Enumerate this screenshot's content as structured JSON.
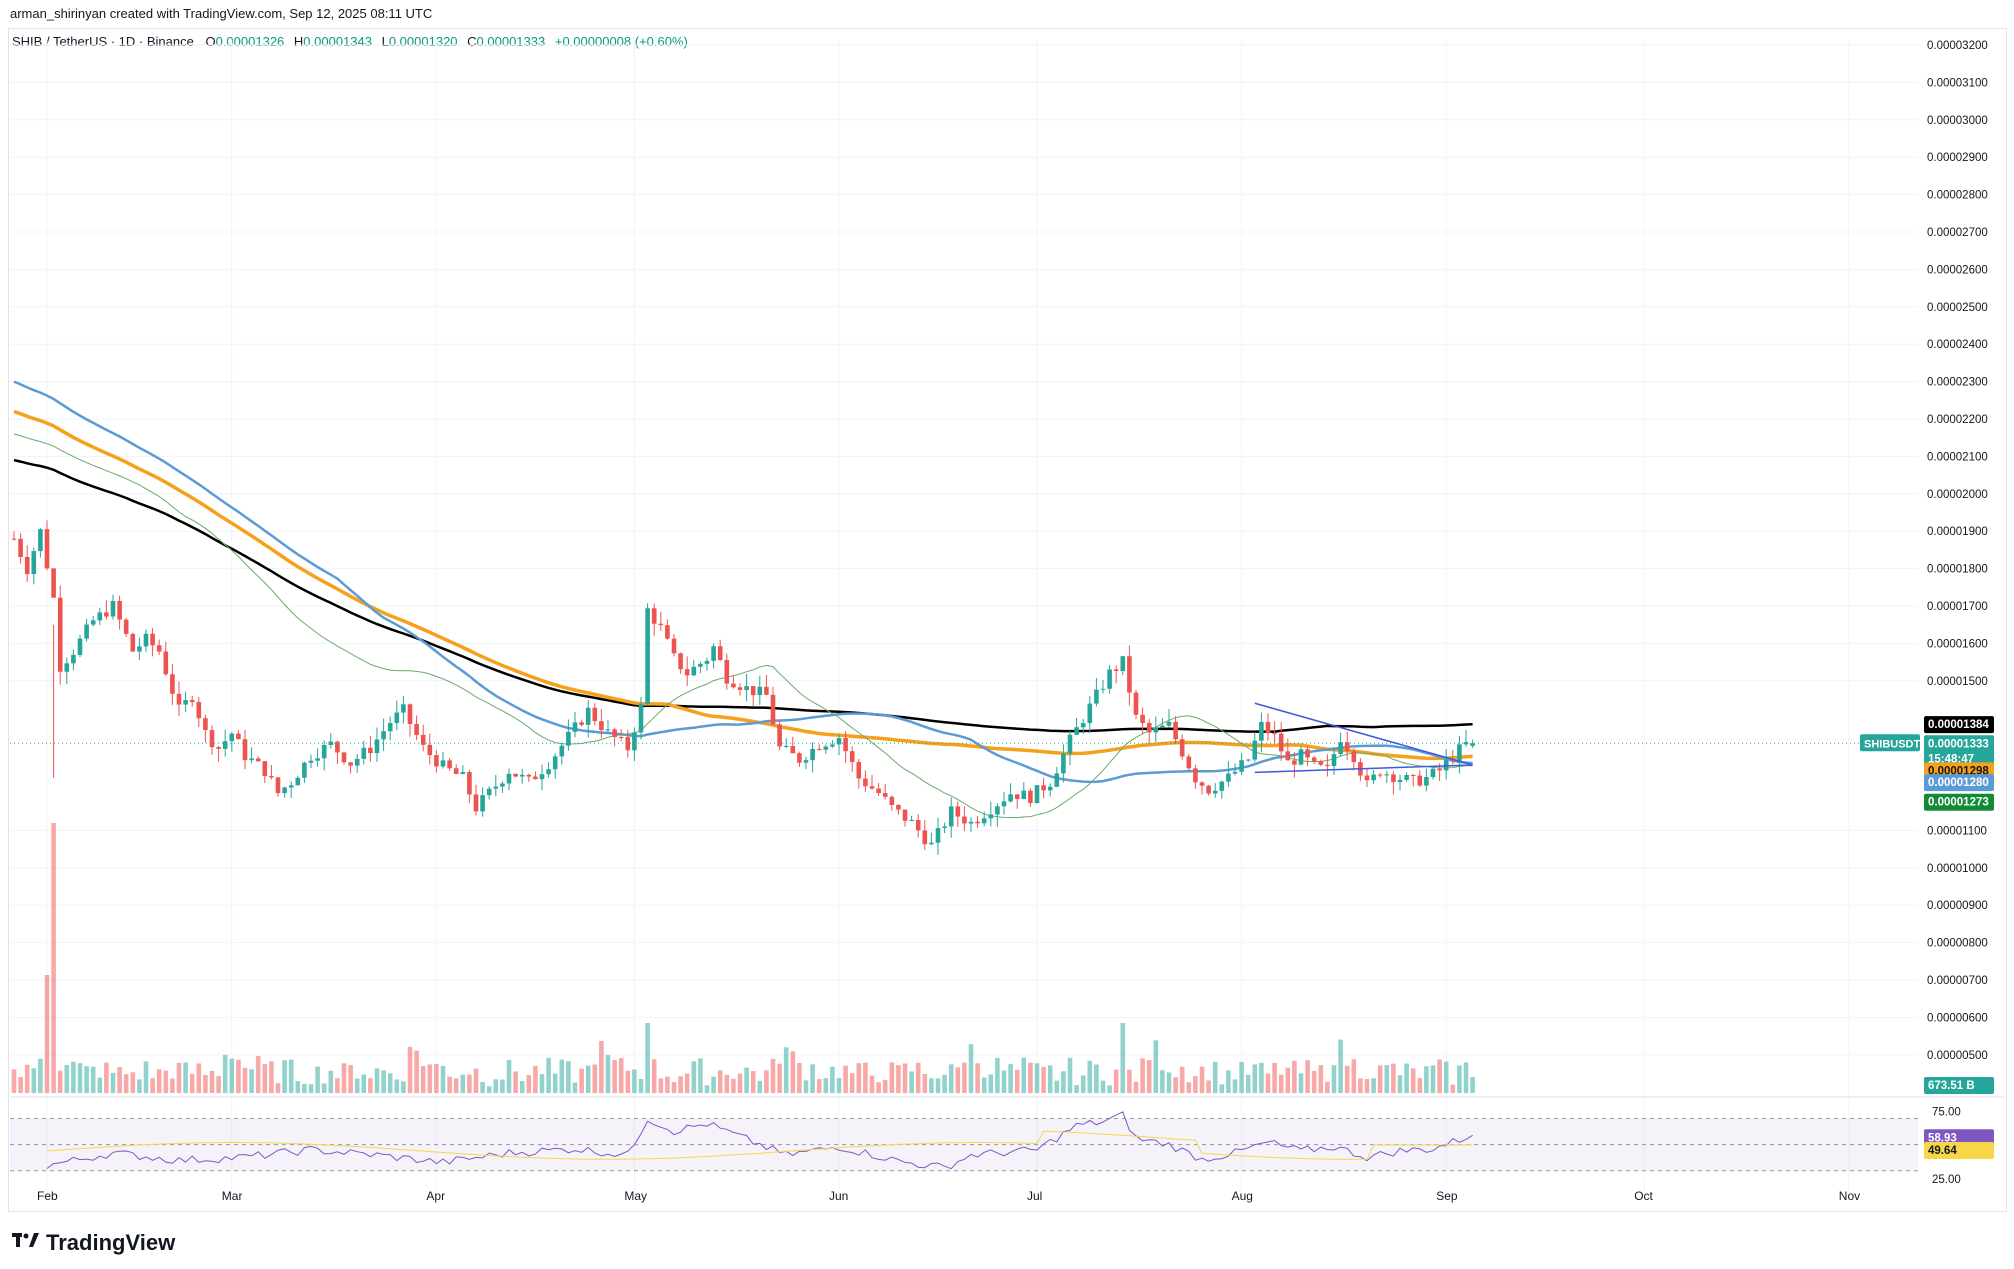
{
  "header": {
    "attribution": "arman_shirinyan created with TradingView.com, Sep 12, 2025 08:11 UTC"
  },
  "legend": {
    "symbol": "SHIB / TetherUS · 1D · Binance",
    "o_key": "O",
    "o_val": "0.00001326",
    "h_key": "H",
    "h_val": "0.00001343",
    "l_key": "L",
    "l_val": "0.00001320",
    "c_key": "C",
    "c_val": "0.00001333",
    "change": "+0.00000008 (+0.60%)"
  },
  "colors": {
    "up": "#26a69a",
    "down": "#ef5350",
    "ma_black": "#000000",
    "ma_orange": "#f5a11b",
    "ma_blue": "#5b9bd5",
    "ma_green": "#6aaa6a",
    "trendline": "#3d5adb",
    "rsi": "#7e57c2",
    "rsi_ma": "#f7d64a"
  },
  "badges": {
    "ma_black": "0.00001384",
    "symbol_name": "SHIBUSDT",
    "price": "0.00001333",
    "countdown": "15:48:47",
    "ma_orange": "0.00001298",
    "ma_blue": "0.00001280",
    "ma_green": "0.00001273",
    "volume": "673.51 B",
    "rsi": "58.93",
    "rsi_ma": "49.64",
    "rsi_upper": "75.00",
    "rsi_lower": "25.00"
  },
  "chart_data": {
    "type": "candlestick",
    "title": "SHIB / TetherUS · 1D · Binance",
    "y_axis": {
      "min": 4.5e-06,
      "max": 3.25e-05,
      "ticks": [
        "0.00003200",
        "0.00003100",
        "0.00003000",
        "0.00002900",
        "0.00002800",
        "0.00002700",
        "0.00002600",
        "0.00002500",
        "0.00002400",
        "0.00002300",
        "0.00002200",
        "0.00002100",
        "0.00002000",
        "0.00001900",
        "0.00001800",
        "0.00001700",
        "0.00001600",
        "0.00001500",
        "0.00001100",
        "0.00001000",
        "0.00000900",
        "0.00000800",
        "0.00000700",
        "0.00000600",
        "0.00000500"
      ]
    },
    "x_axis": {
      "labels": [
        "Feb",
        "Mar",
        "Apr",
        "May",
        "Jun",
        "Jul",
        "Aug",
        "Sep",
        "Oct",
        "Nov"
      ],
      "label_day_index": [
        0,
        28,
        59,
        89,
        120,
        150,
        181,
        212,
        242,
        273
      ]
    },
    "price_path": [
      [
        -5,
        18.8
      ],
      [
        -3,
        18.0
      ],
      [
        -1,
        19.0
      ],
      [
        1,
        17.2
      ],
      [
        2,
        15.4
      ],
      [
        4,
        15.8
      ],
      [
        7,
        16.6
      ],
      [
        10,
        17.0
      ],
      [
        13,
        15.8
      ],
      [
        15,
        16.1
      ],
      [
        17,
        15.8
      ],
      [
        20,
        14.2
      ],
      [
        22,
        14.6
      ],
      [
        24,
        13.6
      ],
      [
        26,
        13.2
      ],
      [
        28,
        13.6
      ],
      [
        30,
        13.0
      ],
      [
        33,
        12.6
      ],
      [
        35,
        12.0
      ],
      [
        37,
        12.3
      ],
      [
        40,
        13.0
      ],
      [
        43,
        13.3
      ],
      [
        46,
        12.8
      ],
      [
        49,
        13.2
      ],
      [
        52,
        13.9
      ],
      [
        54,
        14.2
      ],
      [
        57,
        13.2
      ],
      [
        60,
        12.7
      ],
      [
        63,
        12.4
      ],
      [
        65,
        11.6
      ],
      [
        67,
        12.0
      ],
      [
        70,
        12.6
      ],
      [
        73,
        12.3
      ],
      [
        76,
        12.8
      ],
      [
        79,
        13.5
      ],
      [
        82,
        14.2
      ],
      [
        85,
        13.6
      ],
      [
        88,
        13.2
      ],
      [
        90,
        14.3
      ],
      [
        91,
        16.9
      ],
      [
        93,
        16.4
      ],
      [
        95,
        15.6
      ],
      [
        97,
        15.2
      ],
      [
        100,
        15.6
      ],
      [
        101,
        15.9
      ],
      [
        103,
        15.1
      ],
      [
        106,
        14.8
      ],
      [
        109,
        14.6
      ],
      [
        111,
        13.2
      ],
      [
        114,
        12.9
      ],
      [
        117,
        13.3
      ],
      [
        120,
        13.5
      ],
      [
        123,
        12.4
      ],
      [
        126,
        12.0
      ],
      [
        128,
        11.6
      ],
      [
        131,
        11.2
      ],
      [
        134,
        10.6
      ],
      [
        137,
        11.5
      ],
      [
        140,
        11.2
      ],
      [
        143,
        11.6
      ],
      [
        146,
        12.0
      ],
      [
        149,
        11.9
      ],
      [
        152,
        12.3
      ],
      [
        155,
        13.4
      ],
      [
        157,
        14.0
      ],
      [
        159,
        14.6
      ],
      [
        161,
        15.2
      ],
      [
        163,
        15.5
      ],
      [
        165,
        14.0
      ],
      [
        167,
        13.6
      ],
      [
        170,
        13.8
      ],
      [
        172,
        13.1
      ],
      [
        174,
        12.4
      ],
      [
        176,
        12.1
      ],
      [
        179,
        12.4
      ],
      [
        182,
        12.9
      ],
      [
        184,
        13.8
      ],
      [
        186,
        13.5
      ],
      [
        188,
        12.8
      ],
      [
        190,
        13.0
      ],
      [
        192,
        12.7
      ],
      [
        194,
        12.6
      ],
      [
        196,
        13.5
      ],
      [
        198,
        13.0
      ],
      [
        200,
        12.2
      ],
      [
        202,
        12.6
      ],
      [
        205,
        12.4
      ],
      [
        207,
        12.3
      ],
      [
        209,
        12.4
      ],
      [
        211,
        12.6
      ],
      [
        213,
        13.0
      ],
      [
        215,
        13.3
      ],
      [
        216,
        13.33
      ]
    ],
    "volume": {
      "unit": "B",
      "last": 673.51,
      "pattern": [
        0.3,
        0.25,
        0.22,
        0.35,
        0.9,
        1.0,
        0.7,
        0.5,
        0.4,
        0.45,
        0.35,
        0.28,
        0.3,
        0.4,
        0.3,
        0.25,
        0.2,
        0.28,
        0.22,
        0.3,
        0.35,
        0.25,
        0.2,
        0.3,
        0.4,
        0.35,
        0.25,
        0.3
      ]
    },
    "rsi": {
      "upper": 75,
      "lower": 25,
      "mid": 50,
      "value": 58.93,
      "ma_value": 49.64,
      "path": [
        [
          0,
          30
        ],
        [
          10,
          42
        ],
        [
          20,
          35
        ],
        [
          30,
          38
        ],
        [
          40,
          45
        ],
        [
          50,
          40
        ],
        [
          60,
          33
        ],
        [
          70,
          42
        ],
        [
          80,
          46
        ],
        [
          88,
          40
        ],
        [
          91,
          75
        ],
        [
          95,
          63
        ],
        [
          100,
          70
        ],
        [
          106,
          55
        ],
        [
          112,
          40
        ],
        [
          120,
          48
        ],
        [
          130,
          33
        ],
        [
          136,
          28
        ],
        [
          140,
          40
        ],
        [
          150,
          45
        ],
        [
          156,
          68
        ],
        [
          160,
          72
        ],
        [
          163,
          78
        ],
        [
          165,
          56
        ],
        [
          170,
          50
        ],
        [
          175,
          36
        ],
        [
          180,
          42
        ],
        [
          185,
          52
        ],
        [
          190,
          44
        ],
        [
          195,
          48
        ],
        [
          200,
          38
        ],
        [
          205,
          44
        ],
        [
          210,
          46
        ],
        [
          216,
          58.93
        ]
      ]
    },
    "moving_averages": {
      "ma_black_last": 1.384e-05,
      "ma_orange_last": 1.298e-05,
      "ma_blue_last": 1.28e-05,
      "ma_green_last": 1.273e-05
    }
  },
  "branding": {
    "name": "TradingView"
  }
}
